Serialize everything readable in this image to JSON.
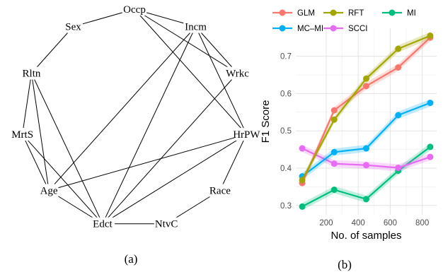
{
  "panel_a": {
    "caption": "(a)",
    "nodes": [
      "Occp",
      "Incm",
      "Wrkc",
      "HrPW",
      "Race",
      "NtvC",
      "Edct",
      "Age",
      "MrtS",
      "Rltn",
      "Sex"
    ],
    "edges": [
      [
        "Occp",
        "Incm"
      ],
      [
        "Occp",
        "Sex"
      ],
      [
        "Occp",
        "Wrkc"
      ],
      [
        "Occp",
        "HrPW"
      ],
      [
        "Incm",
        "Wrkc"
      ],
      [
        "Incm",
        "HrPW"
      ],
      [
        "Incm",
        "Age"
      ],
      [
        "Incm",
        "Edct"
      ],
      [
        "Wrkc",
        "Edct"
      ],
      [
        "HrPW",
        "Age"
      ],
      [
        "HrPW",
        "Edct"
      ],
      [
        "HrPW",
        "Race"
      ],
      [
        "Sex",
        "Rltn"
      ],
      [
        "Rltn",
        "MrtS"
      ],
      [
        "Rltn",
        "Age"
      ],
      [
        "Rltn",
        "Edct"
      ],
      [
        "MrtS",
        "Age"
      ],
      [
        "MrtS",
        "Edct"
      ],
      [
        "Age",
        "Edct"
      ],
      [
        "Edct",
        "NtvC"
      ],
      [
        "NtvC",
        "Race"
      ]
    ]
  },
  "panel_b": {
    "caption": "(b)"
  },
  "chart_data": {
    "type": "line",
    "xlabel": "No. of samples",
    "ylabel": "F1 Score",
    "x": [
      50,
      250,
      450,
      650,
      850
    ],
    "x_ticks": [
      200,
      400,
      600,
      800
    ],
    "y_ticks": [
      0.3,
      0.4,
      0.5,
      0.6,
      0.7
    ],
    "xlim": [
      10,
      890
    ],
    "ylim": [
      0.275,
      0.775
    ],
    "grid": true,
    "legend_position": "top",
    "series": [
      {
        "name": "GLM",
        "color": "#F8766D",
        "values": [
          0.36,
          0.555,
          0.62,
          0.67,
          0.75
        ]
      },
      {
        "name": "MC–MI",
        "color": "#00B0F6",
        "values": [
          0.378,
          0.443,
          0.453,
          0.542,
          0.575
        ]
      },
      {
        "name": "RFT",
        "color": "#A3A500",
        "values": [
          0.368,
          0.53,
          0.64,
          0.72,
          0.755
        ]
      },
      {
        "name": "SCCI",
        "color": "#E76BF3",
        "values": [
          0.453,
          0.412,
          0.408,
          0.401,
          0.43
        ]
      },
      {
        "name": "MI",
        "color": "#00BF7D",
        "values": [
          0.297,
          0.342,
          0.317,
          0.393,
          0.457
        ]
      }
    ],
    "legend_order": [
      "GLM",
      "RFT",
      "MI",
      "MC–MI",
      "SCCI"
    ]
  }
}
